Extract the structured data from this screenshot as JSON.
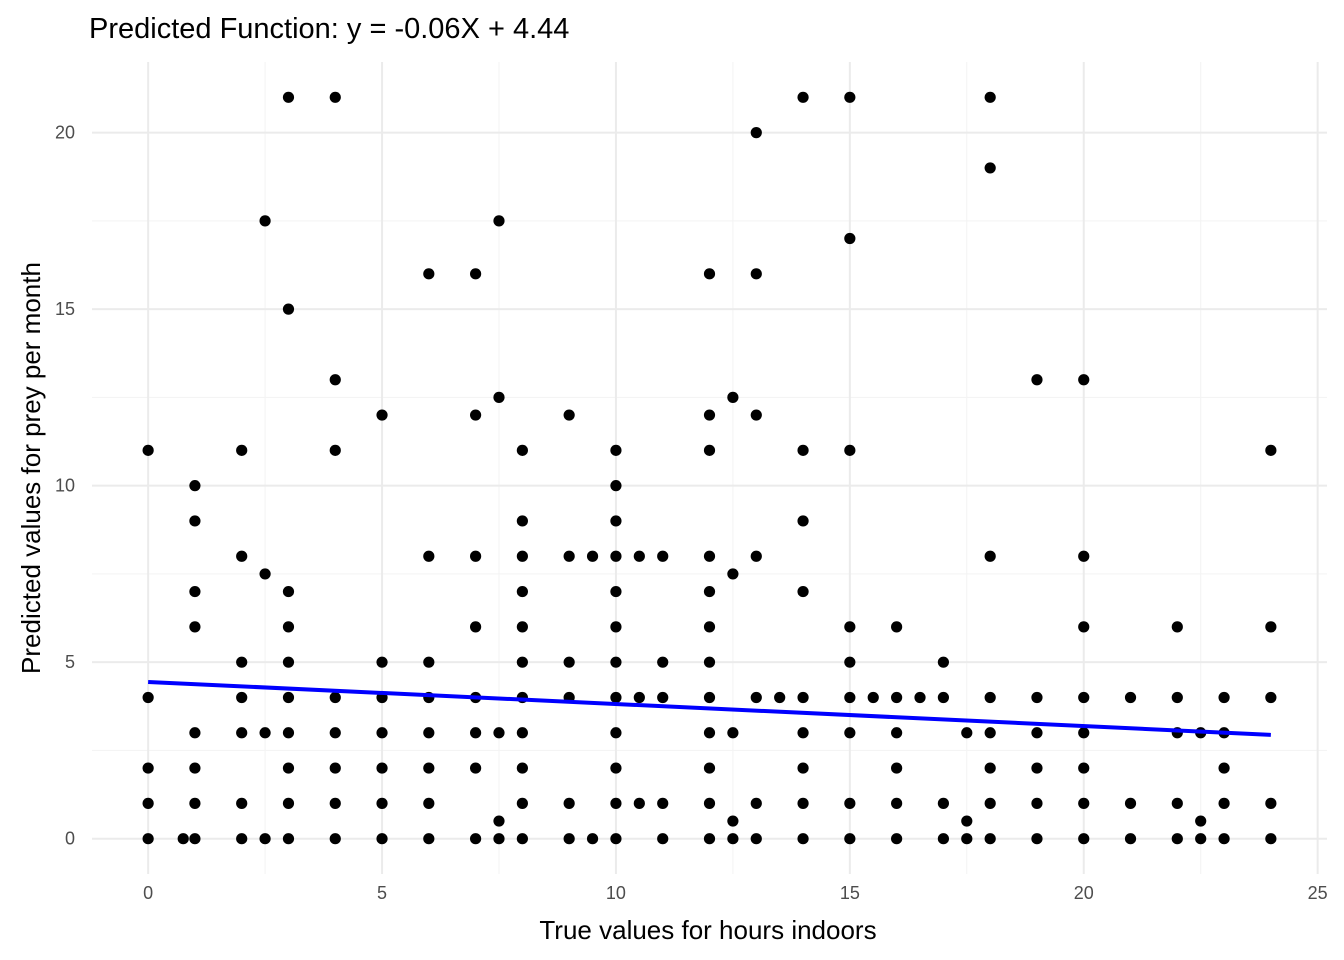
{
  "chart_data": {
    "type": "scatter",
    "title": "Predicted Function: y = -0.06X + 4.44",
    "xlabel": "True values for hours indoors",
    "ylabel": "Predicted values for prey per month",
    "xlim": [
      -1.2,
      25.2
    ],
    "ylim": [
      -1.0,
      22.0
    ],
    "x_ticks": [
      0,
      5,
      10,
      15,
      20,
      25
    ],
    "y_ticks": [
      0,
      5,
      10,
      15,
      20
    ],
    "x_tick_labels": [
      "0",
      "5",
      "10",
      "15",
      "20",
      "25"
    ],
    "y_tick_labels": [
      "0",
      "5",
      "10",
      "15",
      "20"
    ],
    "grid": true,
    "point_color": "#000000",
    "fit_line": {
      "x": [
        0,
        24
      ],
      "y": [
        4.44,
        2.94
      ],
      "color": "#0000ff"
    },
    "points": [
      [
        0,
        11
      ],
      [
        0,
        4
      ],
      [
        0,
        2
      ],
      [
        0,
        1
      ],
      [
        0,
        0
      ],
      [
        0.75,
        0
      ],
      [
        1,
        10
      ],
      [
        1,
        9
      ],
      [
        1,
        7
      ],
      [
        1,
        6
      ],
      [
        1,
        3
      ],
      [
        1,
        2
      ],
      [
        1,
        1
      ],
      [
        1,
        0
      ],
      [
        2,
        11
      ],
      [
        2,
        8
      ],
      [
        2,
        5
      ],
      [
        2,
        4
      ],
      [
        2,
        3
      ],
      [
        2,
        1
      ],
      [
        2,
        0
      ],
      [
        2.5,
        17.5
      ],
      [
        2.5,
        7.5
      ],
      [
        2.5,
        3
      ],
      [
        2.5,
        0
      ],
      [
        3,
        21
      ],
      [
        3,
        15
      ],
      [
        3,
        7
      ],
      [
        3,
        6
      ],
      [
        3,
        5
      ],
      [
        3,
        4
      ],
      [
        3,
        3
      ],
      [
        3,
        2
      ],
      [
        3,
        1
      ],
      [
        3,
        0
      ],
      [
        4,
        21
      ],
      [
        4,
        13
      ],
      [
        4,
        11
      ],
      [
        4,
        4
      ],
      [
        4,
        3
      ],
      [
        4,
        2
      ],
      [
        4,
        1
      ],
      [
        4,
        0
      ],
      [
        5,
        12
      ],
      [
        5,
        5
      ],
      [
        5,
        4
      ],
      [
        5,
        3
      ],
      [
        5,
        2
      ],
      [
        5,
        1
      ],
      [
        5,
        0
      ],
      [
        6,
        16
      ],
      [
        6,
        8
      ],
      [
        6,
        5
      ],
      [
        6,
        4
      ],
      [
        6,
        3
      ],
      [
        6,
        2
      ],
      [
        6,
        1
      ],
      [
        6,
        0
      ],
      [
        7,
        16
      ],
      [
        7,
        12
      ],
      [
        7,
        8
      ],
      [
        7,
        6
      ],
      [
        7,
        4
      ],
      [
        7,
        3
      ],
      [
        7,
        2
      ],
      [
        7,
        0
      ],
      [
        7.5,
        17.5
      ],
      [
        7.5,
        12.5
      ],
      [
        7.5,
        3
      ],
      [
        7.5,
        0.5
      ],
      [
        7.5,
        0
      ],
      [
        8,
        11
      ],
      [
        8,
        9
      ],
      [
        8,
        8
      ],
      [
        8,
        7
      ],
      [
        8,
        6
      ],
      [
        8,
        5
      ],
      [
        8,
        4
      ],
      [
        8,
        3
      ],
      [
        8,
        2
      ],
      [
        8,
        1
      ],
      [
        8,
        0
      ],
      [
        9,
        12
      ],
      [
        9,
        8
      ],
      [
        9,
        5
      ],
      [
        9,
        4
      ],
      [
        9,
        1
      ],
      [
        9,
        0
      ],
      [
        9.5,
        8
      ],
      [
        9.5,
        0
      ],
      [
        10,
        11
      ],
      [
        10,
        10
      ],
      [
        10,
        9
      ],
      [
        10,
        8
      ],
      [
        10,
        7
      ],
      [
        10,
        6
      ],
      [
        10,
        5
      ],
      [
        10,
        4
      ],
      [
        10,
        3
      ],
      [
        10,
        2
      ],
      [
        10,
        1
      ],
      [
        10,
        0
      ],
      [
        10.5,
        8
      ],
      [
        10.5,
        4
      ],
      [
        10.5,
        1
      ],
      [
        11,
        8
      ],
      [
        11,
        5
      ],
      [
        11,
        4
      ],
      [
        11,
        1
      ],
      [
        11,
        0
      ],
      [
        12,
        16
      ],
      [
        12,
        12
      ],
      [
        12,
        11
      ],
      [
        12,
        8
      ],
      [
        12,
        7
      ],
      [
        12,
        6
      ],
      [
        12,
        5
      ],
      [
        12,
        4
      ],
      [
        12,
        3
      ],
      [
        12,
        2
      ],
      [
        12,
        1
      ],
      [
        12,
        0
      ],
      [
        12.5,
        12.5
      ],
      [
        12.5,
        7.5
      ],
      [
        12.5,
        3
      ],
      [
        12.5,
        0.5
      ],
      [
        12.5,
        0
      ],
      [
        13,
        20
      ],
      [
        13,
        16
      ],
      [
        13,
        12
      ],
      [
        13,
        8
      ],
      [
        13,
        4
      ],
      [
        13,
        1
      ],
      [
        13,
        0
      ],
      [
        13.5,
        4
      ],
      [
        14,
        21
      ],
      [
        14,
        11
      ],
      [
        14,
        9
      ],
      [
        14,
        7
      ],
      [
        14,
        4
      ],
      [
        14,
        3
      ],
      [
        14,
        2
      ],
      [
        14,
        1
      ],
      [
        14,
        0
      ],
      [
        15,
        21
      ],
      [
        15,
        17
      ],
      [
        15,
        11
      ],
      [
        15,
        6
      ],
      [
        15,
        5
      ],
      [
        15,
        4
      ],
      [
        15,
        3
      ],
      [
        15,
        1
      ],
      [
        15,
        0
      ],
      [
        15.5,
        4
      ],
      [
        16,
        6
      ],
      [
        16,
        4
      ],
      [
        16,
        3
      ],
      [
        16,
        2
      ],
      [
        16,
        1
      ],
      [
        16,
        0
      ],
      [
        16.5,
        4
      ],
      [
        17,
        5
      ],
      [
        17,
        4
      ],
      [
        17,
        1
      ],
      [
        17,
        0
      ],
      [
        17.5,
        3
      ],
      [
        17.5,
        0.5
      ],
      [
        17.5,
        0
      ],
      [
        18,
        21
      ],
      [
        18,
        19
      ],
      [
        18,
        8
      ],
      [
        18,
        4
      ],
      [
        18,
        3
      ],
      [
        18,
        2
      ],
      [
        18,
        1
      ],
      [
        18,
        0
      ],
      [
        19,
        13
      ],
      [
        19,
        4
      ],
      [
        19,
        3
      ],
      [
        19,
        2
      ],
      [
        19,
        1
      ],
      [
        19,
        0
      ],
      [
        20,
        13
      ],
      [
        20,
        8
      ],
      [
        20,
        6
      ],
      [
        20,
        4
      ],
      [
        20,
        3
      ],
      [
        20,
        2
      ],
      [
        20,
        1
      ],
      [
        20,
        0
      ],
      [
        21,
        4
      ],
      [
        21,
        1
      ],
      [
        21,
        0
      ],
      [
        22,
        6
      ],
      [
        22,
        4
      ],
      [
        22,
        3
      ],
      [
        22,
        1
      ],
      [
        22,
        0
      ],
      [
        22.5,
        3
      ],
      [
        22.5,
        0.5
      ],
      [
        22.5,
        0
      ],
      [
        23,
        4
      ],
      [
        23,
        3
      ],
      [
        23,
        2
      ],
      [
        23,
        1
      ],
      [
        23,
        0
      ],
      [
        24,
        11
      ],
      [
        24,
        6
      ],
      [
        24,
        4
      ],
      [
        24,
        1
      ],
      [
        24,
        0
      ]
    ]
  }
}
